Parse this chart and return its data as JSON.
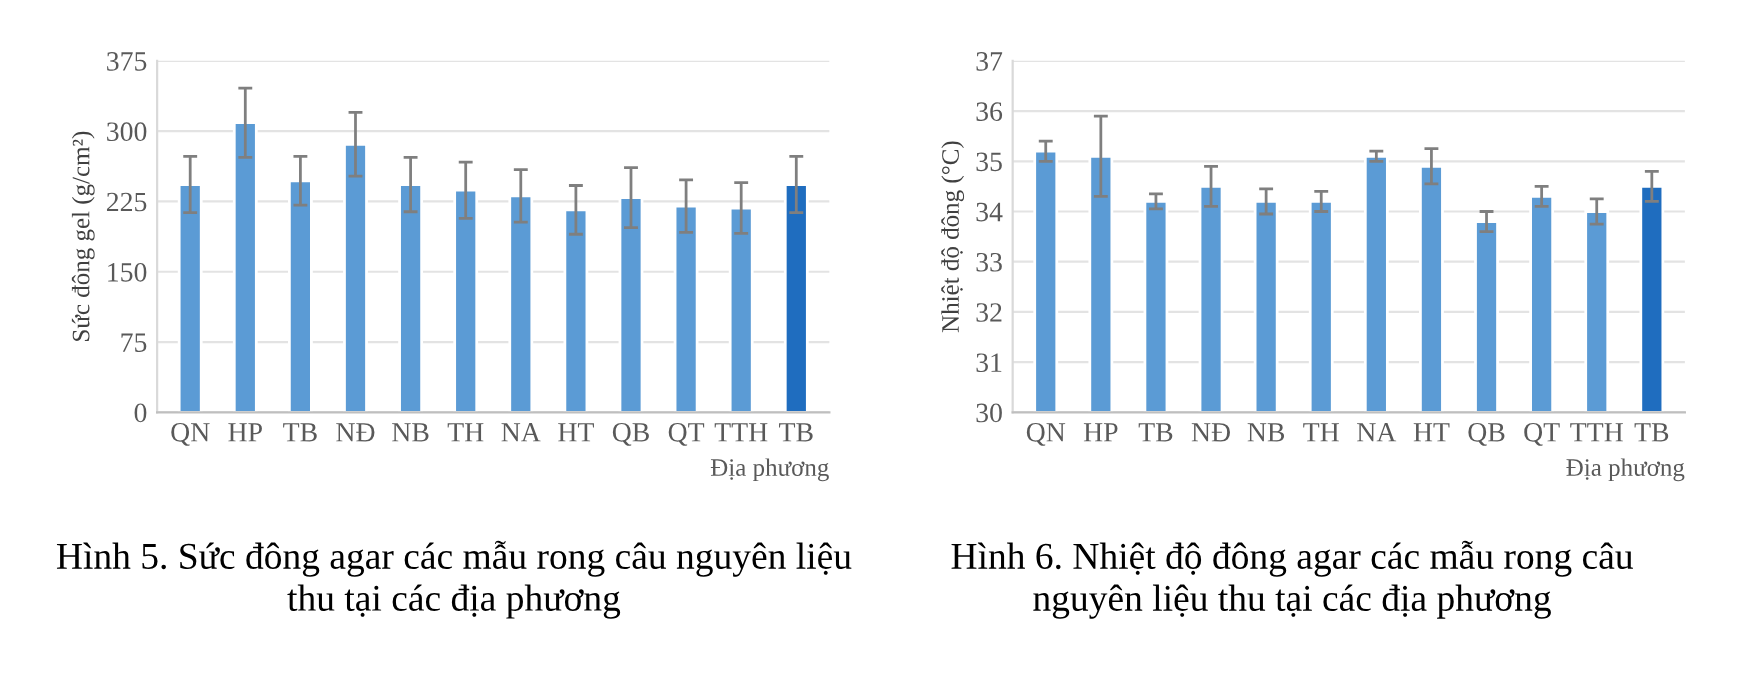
{
  "chart_data": [
    {
      "type": "bar",
      "ylabel": "Sức đông gel (g/cm²)",
      "xlabel": "Địa phương",
      "categories": [
        "QN",
        "HP",
        "TB",
        "NĐ",
        "NB",
        "TH",
        "NA",
        "HT",
        "QB",
        "QT",
        "TTH",
        "TB"
      ],
      "values": [
        243,
        309,
        247,
        286,
        243,
        237,
        231,
        216,
        229,
        220,
        218,
        243
      ],
      "errors": [
        30,
        37,
        26,
        34,
        29,
        30,
        28,
        26,
        32,
        28,
        27,
        30
      ],
      "colors": [
        "#5b9bd5",
        "#5b9bd5",
        "#5b9bd5",
        "#5b9bd5",
        "#5b9bd5",
        "#5b9bd5",
        "#5b9bd5",
        "#5b9bd5",
        "#5b9bd5",
        "#5b9bd5",
        "#5b9bd5",
        "#1f6dbf"
      ],
      "ylim": [
        0,
        375
      ],
      "yticks": [
        0,
        75,
        150,
        225,
        300,
        375
      ],
      "grid": "y",
      "annotations": [
        "Hình 5. Sức đông agar các mẫu rong câu nguyên liệu thu tại các địa phương"
      ]
    },
    {
      "type": "bar",
      "ylabel": "Nhiệt độ đông (°C)",
      "xlabel": "Địa phương",
      "categories": [
        "QN",
        "HP",
        "TB",
        "NĐ",
        "NB",
        "TH",
        "NA",
        "HT",
        "QB",
        "QT",
        "TTH",
        "TB"
      ],
      "values": [
        35.2,
        35.1,
        34.2,
        34.5,
        34.2,
        34.2,
        35.1,
        34.9,
        33.8,
        34.3,
        34.0,
        34.5
      ],
      "errors": [
        0.2,
        0.8,
        0.15,
        0.4,
        0.25,
        0.2,
        0.1,
        0.35,
        0.2,
        0.2,
        0.25,
        0.3
      ],
      "colors": [
        "#5b9bd5",
        "#5b9bd5",
        "#5b9bd5",
        "#5b9bd5",
        "#5b9bd5",
        "#5b9bd5",
        "#5b9bd5",
        "#5b9bd5",
        "#5b9bd5",
        "#5b9bd5",
        "#5b9bd5",
        "#1f6dbf"
      ],
      "ylim": [
        30,
        37
      ],
      "yticks": [
        30,
        31,
        32,
        33,
        34,
        35,
        36,
        37
      ],
      "grid": "y",
      "annotations": [
        "Hình 6. Nhiệt độ đông agar các mẫu rong câu nguyên liệu thu tại các địa phương"
      ]
    }
  ]
}
